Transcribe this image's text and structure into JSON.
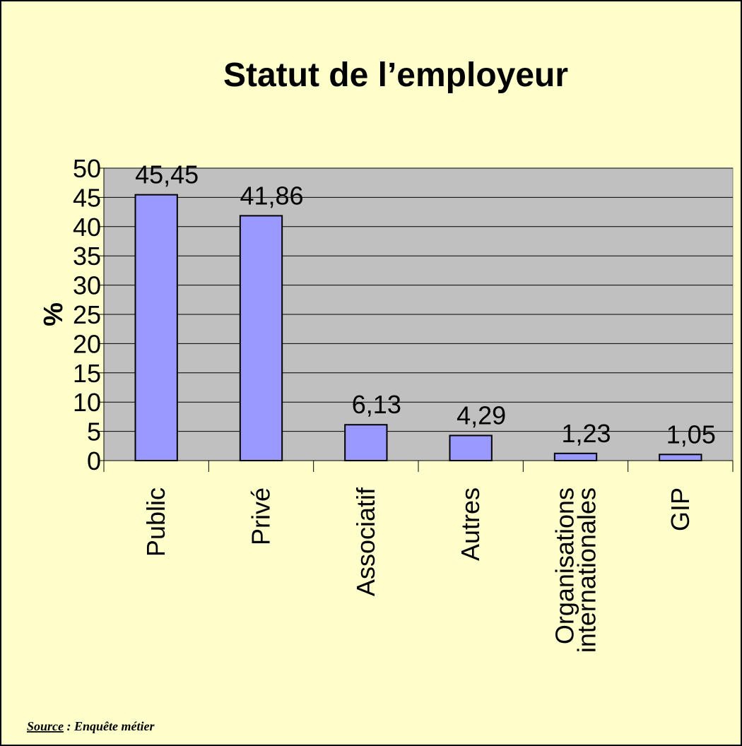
{
  "chart_data": {
    "type": "bar",
    "title": "Statut de l’employeur",
    "y_label": "%",
    "categories": [
      "Public",
      "Privé",
      "Associatif",
      "Autres",
      "Organisations internationales",
      "GIP"
    ],
    "values": [
      45.45,
      41.86,
      6.13,
      4.29,
      1.23,
      1.05
    ],
    "value_labels": [
      "45,45",
      "41,86",
      "6,13",
      "4,29",
      "1,23",
      "1,05"
    ],
    "color": "#9999ff",
    "ylim": [
      0,
      50
    ],
    "yticks": [
      0,
      5,
      10,
      15,
      20,
      25,
      30,
      35,
      40,
      45,
      50
    ],
    "grid": true,
    "source": {
      "label": "Source",
      "text": " : Enquête métier"
    }
  }
}
